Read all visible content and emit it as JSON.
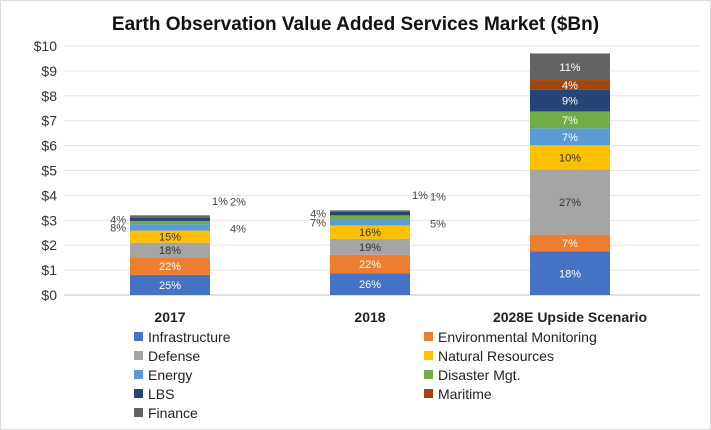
{
  "chart_data": {
    "type": "bar",
    "stacked": true,
    "title": "Earth Observation Value Added Services Market ($Bn)",
    "xlabel": "",
    "ylabel": "",
    "ylim": [
      0,
      10
    ],
    "yticks": [
      "$0",
      "$1",
      "$2",
      "$3",
      "$4",
      "$5",
      "$6",
      "$7",
      "$8",
      "$9",
      "$10"
    ],
    "categories": [
      "2017",
      "2018",
      "2028E Upside Scenario"
    ],
    "totals": [
      3.2,
      3.4,
      9.7
    ],
    "series": [
      {
        "name": "Infrastructure",
        "color": "#4472C4",
        "labels": [
          "25%",
          "26%",
          "18%"
        ]
      },
      {
        "name": "Environmental Monitoring",
        "color": "#ED7D31",
        "labels": [
          "22%",
          "22%",
          "7%"
        ]
      },
      {
        "name": "Defense",
        "color": "#A5A5A5",
        "labels": [
          "18%",
          "19%",
          "27%"
        ]
      },
      {
        "name": "Natural Resources",
        "color": "#FFC000",
        "labels": [
          "15%",
          "16%",
          "10%"
        ]
      },
      {
        "name": "Energy",
        "color": "#5B9BD5",
        "labels": [
          "8%",
          "7%",
          "7%"
        ]
      },
      {
        "name": "Disaster Mgt.",
        "color": "#70AD47",
        "labels": [
          "4%",
          "5%",
          "7%"
        ]
      },
      {
        "name": "LBS",
        "color": "#264478",
        "labels": [
          "4%",
          "4%",
          "9%"
        ]
      },
      {
        "name": "Maritime",
        "color": "#9E480E",
        "labels": [
          "1%",
          "1%",
          "4%"
        ]
      },
      {
        "name": "Finance",
        "color": "#636363",
        "labels": [
          "2%",
          "1%",
          "11%"
        ]
      }
    ]
  }
}
